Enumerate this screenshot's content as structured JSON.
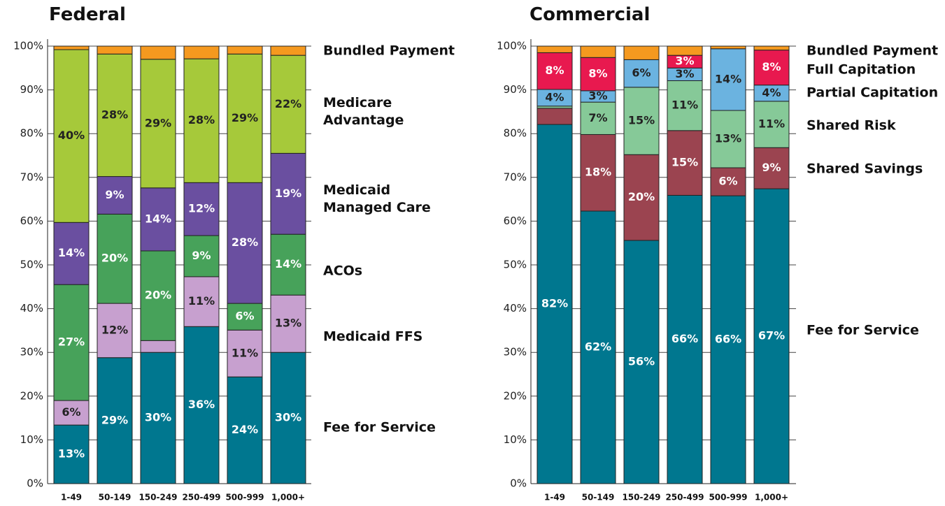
{
  "chart_data": [
    {
      "type": "bar",
      "stacked": true,
      "title": "Federal",
      "categories": [
        "1-49",
        "50-149",
        "150-249",
        "250-499",
        "500-999",
        "1,000+"
      ],
      "series": [
        {
          "name": "Fee for Service",
          "color": "#00778f",
          "values": [
            13.4,
            28.8,
            30,
            35.9,
            24.4,
            30
          ],
          "value_labels": [
            "13%",
            "29%",
            "30%",
            "36%",
            "24%",
            "30%"
          ]
        },
        {
          "name": "Medicaid FFS",
          "color": "#c7a0cf",
          "values": [
            5.6,
            12.4,
            2.7,
            11.4,
            10.7,
            13.1
          ],
          "value_labels": [
            "6%",
            "12%",
            null,
            "11%",
            "11%",
            "13%"
          ]
        },
        {
          "name": "ACOs",
          "color": "#47a25a",
          "values": [
            26.5,
            20.4,
            20.5,
            9.4,
            6.1,
            13.9
          ],
          "value_labels": [
            "27%",
            "20%",
            "20%",
            "9%",
            "6%",
            "14%"
          ]
        },
        {
          "name": "Medicaid Managed Care",
          "color": "#6a4fa0",
          "values": [
            14.2,
            8.6,
            14.4,
            12.1,
            27.6,
            18.5
          ],
          "value_labels": [
            "14%",
            "9%",
            "14%",
            "12%",
            "28%",
            "19%"
          ]
        },
        {
          "name": "Medicare Advantage",
          "color": "#a6c93a",
          "values": [
            39.5,
            28.0,
            29.4,
            28.3,
            29.4,
            22.4
          ],
          "value_labels": [
            "40%",
            "28%",
            "29%",
            "28%",
            "29%",
            "22%"
          ]
        },
        {
          "name": "Bundled Payment",
          "color": "#f5991f",
          "values": [
            0.8,
            1.8,
            3.0,
            2.9,
            1.8,
            2.1
          ]
        }
      ],
      "ylim": [
        0,
        100
      ],
      "yticks": [
        {
          "value": 0,
          "label": "0%"
        },
        {
          "value": 10,
          "label": "10%"
        },
        {
          "value": 20,
          "label": "20%"
        },
        {
          "value": 30,
          "label": "30%"
        },
        {
          "value": 40,
          "label": "40%"
        },
        {
          "value": 50,
          "label": "50%"
        },
        {
          "value": 60,
          "label": "60%"
        },
        {
          "value": 70,
          "label": "70%"
        },
        {
          "value": 80,
          "label": "80%"
        },
        {
          "value": 90,
          "label": "90%"
        },
        {
          "value": 100,
          "label": "100%"
        }
      ],
      "grid": true
    },
    {
      "type": "bar",
      "stacked": true,
      "title": "Commercial",
      "categories": [
        "1-49",
        "50-149",
        "150-249",
        "250-499",
        "500-999",
        "1,000+"
      ],
      "series": [
        {
          "name": "Fee for Service",
          "color": "#00778f",
          "values": [
            82.1,
            62.3,
            55.6,
            65.9,
            65.8,
            67.4
          ],
          "value_labels": [
            "82%",
            "62%",
            "56%",
            "66%",
            "66%",
            "67%"
          ]
        },
        {
          "name": "Shared Savings",
          "color": "#9b4450",
          "values": [
            3.7,
            17.5,
            19.6,
            14.8,
            6.4,
            9.4
          ],
          "value_labels": [
            null,
            "18%",
            "20%",
            "15%",
            "6%",
            "9%"
          ]
        },
        {
          "name": "Shared Risk",
          "color": "#86c998",
          "values": [
            0.5,
            7.4,
            15.4,
            11.4,
            13.1,
            10.6
          ],
          "value_labels": [
            null,
            "7%",
            "15%",
            "11%",
            "13%",
            "11%"
          ]
        },
        {
          "name": "Partial Capitation",
          "color": "#6bb3e0",
          "values": [
            3.8,
            2.6,
            6.3,
            2.9,
            14.1,
            3.7
          ],
          "value_labels": [
            "4%",
            "3%",
            "6%",
            "3%",
            "14%",
            "4%"
          ]
        },
        {
          "name": "Full Capitation",
          "color": "#e8194f",
          "values": [
            8.4,
            7.6,
            0,
            2.9,
            0,
            8
          ],
          "value_labels": [
            "8%",
            "8%",
            null,
            "3%",
            null,
            "8%"
          ]
        },
        {
          "name": "Bundled Payment",
          "color": "#f5991f",
          "values": [
            1.5,
            2.6,
            3.1,
            2.1,
            0.6,
            0.9
          ]
        }
      ],
      "ylim": [
        0,
        100
      ],
      "yticks": [
        {
          "value": 0,
          "label": "0%"
        },
        {
          "value": 10,
          "label": "10%"
        },
        {
          "value": 20,
          "label": "20%"
        },
        {
          "value": 30,
          "label": "30%"
        },
        {
          "value": 40,
          "label": "40%"
        },
        {
          "value": 50,
          "label": "50%"
        },
        {
          "value": 60,
          "label": "60%"
        },
        {
          "value": 70,
          "label": "70%"
        },
        {
          "value": 80,
          "label": "80%"
        },
        {
          "value": 90,
          "label": "90%"
        },
        {
          "value": 100,
          "label": "100%"
        }
      ],
      "grid": true
    }
  ]
}
